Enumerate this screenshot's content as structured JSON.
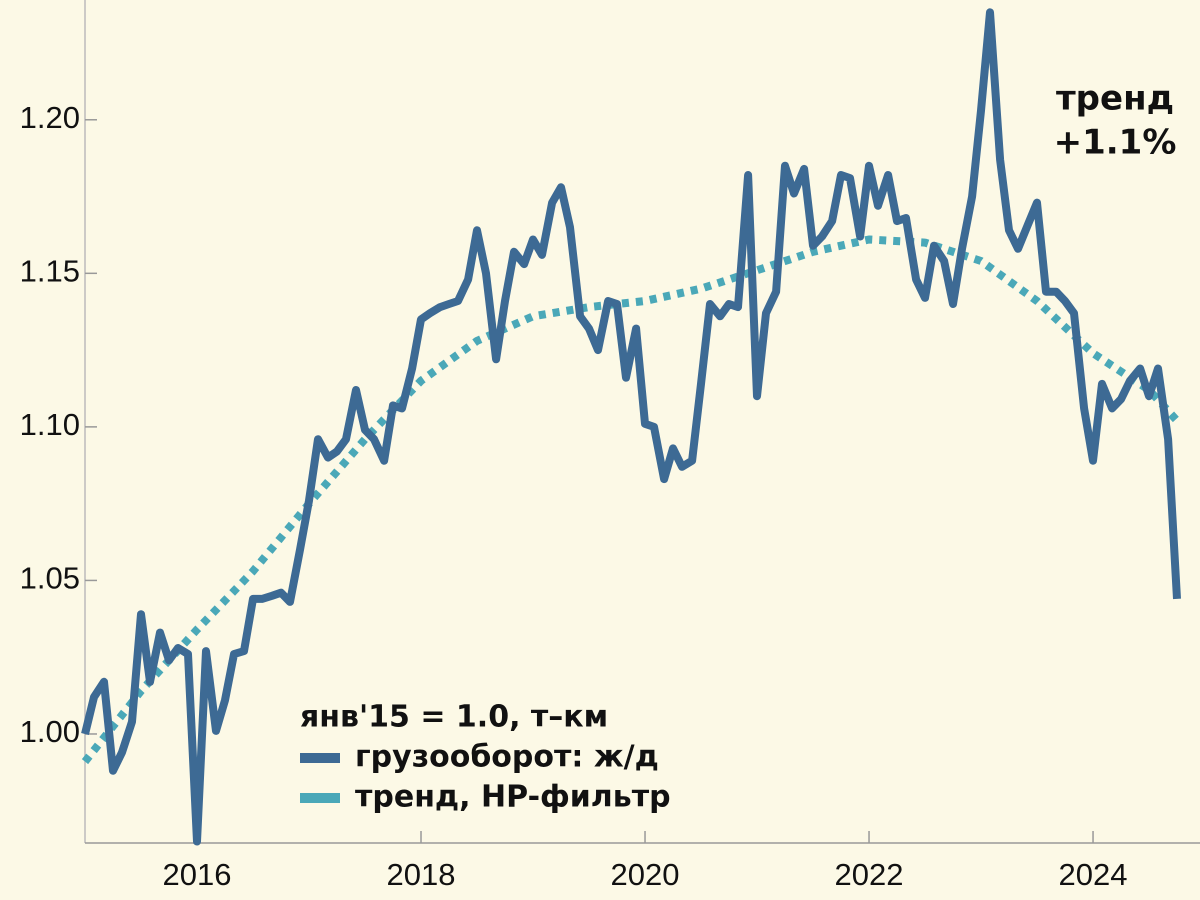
{
  "chart_data": {
    "type": "line",
    "legend_title": "янв'15 = 1.0, т–км",
    "annotation": [
      "тренд",
      "+1.1%"
    ],
    "annotation_color": "#4aa8b8",
    "xlim": [
      2015,
      2024.83
    ],
    "xticks": [
      2016,
      2018,
      2020,
      2022,
      2024
    ],
    "ylim": [
      0.9645,
      1.239
    ],
    "yticks": [
      {
        "value": 1.0,
        "label": "1.00"
      },
      1.05,
      {
        "value": 1.1,
        "label": "1.10"
      },
      1.15,
      {
        "value": 1.2,
        "label": "1.20"
      }
    ],
    "series": [
      {
        "name": "грузооборот: ж/д",
        "color": "#3d6a94",
        "style": "solid",
        "x": [
          2015,
          2015.08,
          2015.17,
          2015.25,
          2015.33,
          2015.42,
          2015.5,
          2015.58,
          2015.67,
          2015.75,
          2015.83,
          2015.92,
          2016,
          2016.08,
          2016.17,
          2016.25,
          2016.33,
          2016.42,
          2016.5,
          2016.58,
          2016.67,
          2016.75,
          2016.83,
          2016.92,
          2017,
          2017.08,
          2017.17,
          2017.25,
          2017.33,
          2017.42,
          2017.5,
          2017.58,
          2017.67,
          2017.75,
          2017.83,
          2017.92,
          2018,
          2018.08,
          2018.17,
          2018.25,
          2018.33,
          2018.42,
          2018.5,
          2018.58,
          2018.67,
          2018.75,
          2018.83,
          2018.92,
          2019,
          2019.08,
          2019.17,
          2019.25,
          2019.33,
          2019.42,
          2019.5,
          2019.58,
          2019.67,
          2019.75,
          2019.83,
          2019.92,
          2020,
          2020.08,
          2020.17,
          2020.25,
          2020.33,
          2020.42,
          2020.5,
          2020.58,
          2020.67,
          2020.75,
          2020.83,
          2020.92,
          2021,
          2021.08,
          2021.17,
          2021.25,
          2021.33,
          2021.42,
          2021.5,
          2021.58,
          2021.67,
          2021.75,
          2021.83,
          2021.92,
          2022,
          2022.08,
          2022.17,
          2022.25,
          2022.33,
          2022.42,
          2022.5,
          2022.58,
          2022.67,
          2022.75,
          2022.83,
          2022.92,
          2023,
          2023.08,
          2023.17,
          2023.25,
          2023.33,
          2023.42,
          2023.5,
          2023.58,
          2023.67,
          2023.75,
          2023.83,
          2023.92,
          2024,
          2024.08,
          2024.17,
          2024.25,
          2024.33,
          2024.42,
          2024.5,
          2024.58,
          2024.67,
          2024.75
        ],
        "values": [
          1.0,
          1.012,
          1.017,
          0.988,
          0.994,
          1.004,
          1.039,
          1.017,
          1.033,
          1.024,
          1.028,
          1.026,
          0.965,
          1.027,
          1.001,
          1.011,
          1.026,
          1.027,
          1.044,
          1.044,
          1.045,
          1.046,
          1.043,
          1.06,
          1.076,
          1.096,
          1.09,
          1.092,
          1.096,
          1.112,
          1.099,
          1.096,
          1.089,
          1.107,
          1.106,
          1.119,
          1.135,
          1.137,
          1.139,
          1.14,
          1.141,
          1.148,
          1.164,
          1.15,
          1.122,
          1.141,
          1.157,
          1.153,
          1.161,
          1.156,
          1.173,
          1.178,
          1.165,
          1.136,
          1.132,
          1.125,
          1.141,
          1.14,
          1.116,
          1.132,
          1.101,
          1.1,
          1.083,
          1.093,
          1.087,
          1.089,
          1.114,
          1.14,
          1.136,
          1.14,
          1.139,
          1.182,
          1.11,
          1.137,
          1.144,
          1.185,
          1.176,
          1.184,
          1.159,
          1.162,
          1.167,
          1.182,
          1.181,
          1.162,
          1.185,
          1.172,
          1.182,
          1.167,
          1.168,
          1.148,
          1.142,
          1.159,
          1.154,
          1.14,
          1.158,
          1.175,
          1.203,
          1.235,
          1.187,
          1.164,
          1.158,
          1.166,
          1.173,
          1.144,
          1.144,
          1.141,
          1.137,
          1.106,
          1.089,
          1.114,
          1.106,
          1.109,
          1.115,
          1.119,
          1.11,
          1.119,
          1.096,
          1.044
        ]
      },
      {
        "name": "тренд, HP-фильтр",
        "color": "#4aa8b8",
        "style": "dotted",
        "x": [
          2015,
          2015.5,
          2016,
          2016.5,
          2017,
          2017.5,
          2018,
          2018.5,
          2019,
          2019.5,
          2020,
          2020.5,
          2021,
          2021.5,
          2022,
          2022.5,
          2023,
          2023.5,
          2024,
          2024.5,
          2024.75
        ],
        "values": [
          0.991,
          1.014,
          1.034,
          1.053,
          1.075,
          1.096,
          1.115,
          1.128,
          1.136,
          1.139,
          1.141,
          1.145,
          1.151,
          1.157,
          1.161,
          1.16,
          1.154,
          1.141,
          1.124,
          1.112,
          1.102
        ]
      }
    ]
  }
}
